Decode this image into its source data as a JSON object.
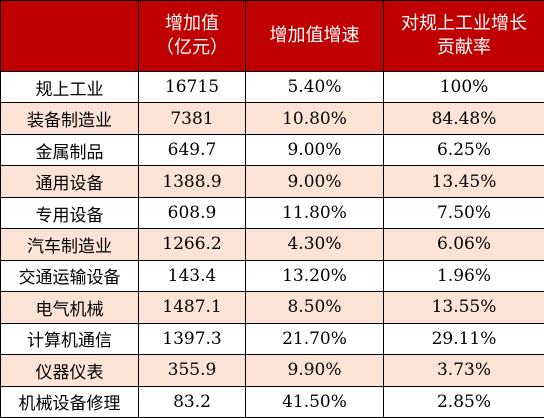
{
  "chart_data": {
    "type": "table",
    "columns": [
      {
        "key": "name",
        "label_lines": [
          ""
        ]
      },
      {
        "key": "value",
        "label_lines": [
          "增加值",
          "（亿元）"
        ]
      },
      {
        "key": "growth",
        "label_lines": [
          "增加值增速"
        ]
      },
      {
        "key": "contribution",
        "label_lines": [
          "对规上工业增长",
          "贡献率"
        ]
      }
    ],
    "rows": [
      {
        "name": "规上工业",
        "value": "16715",
        "growth": "5.40%",
        "contribution": "100%"
      },
      {
        "name": "装备制造业",
        "value": "7381",
        "growth": "10.80%",
        "contribution": "84.48%"
      },
      {
        "name": "金属制品",
        "value": "649.7",
        "growth": "9.00%",
        "contribution": "6.25%"
      },
      {
        "name": "通用设备",
        "value": "1388.9",
        "growth": "9.00%",
        "contribution": "13.45%"
      },
      {
        "name": "专用设备",
        "value": "608.9",
        "growth": "11.80%",
        "contribution": "7.50%"
      },
      {
        "name": "汽车制造业",
        "value": "1266.2",
        "growth": "4.30%",
        "contribution": "6.06%"
      },
      {
        "name": "交通运输设备",
        "value": "143.4",
        "growth": "13.20%",
        "contribution": "1.96%"
      },
      {
        "name": "电气机械",
        "value": "1487.1",
        "growth": "8.50%",
        "contribution": "13.55%"
      },
      {
        "name": "计算机通信",
        "value": "1397.3",
        "growth": "21.70%",
        "contribution": "29.11%"
      },
      {
        "name": "仪器仪表",
        "value": "355.9",
        "growth": "9.90%",
        "contribution": "3.73%"
      },
      {
        "name": "机械设备修理",
        "value": "83.2",
        "growth": "41.50%",
        "contribution": "2.85%"
      }
    ],
    "colors": {
      "header_bg": "#c00000",
      "header_text": "#ffffff",
      "row_stripe": "#fbe4d5",
      "row_plain": "#ffffff",
      "border": "#000000"
    }
  }
}
